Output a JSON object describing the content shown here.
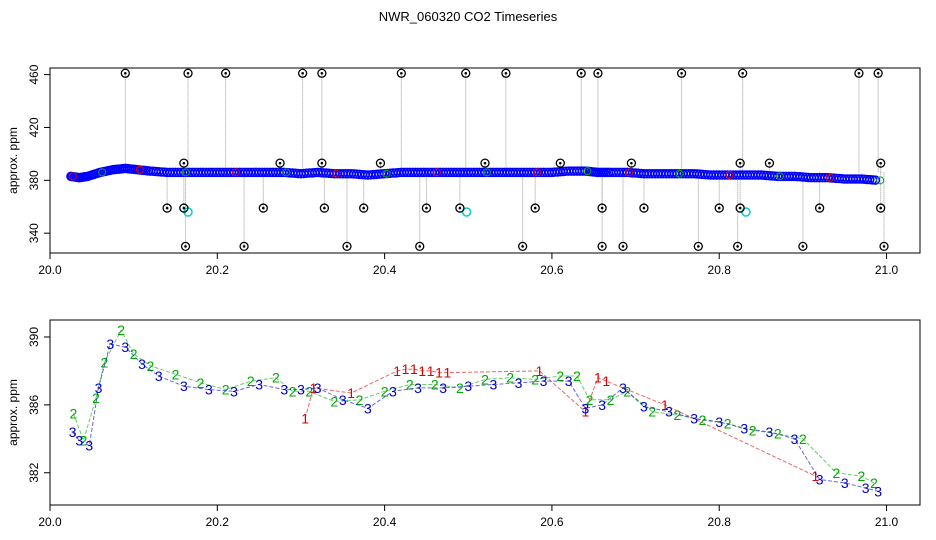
{
  "title": "NWR_060320  CO2 Timeseries",
  "chart_data": [
    {
      "type": "scatter",
      "ylabel": "approx. ppm",
      "xlim": [
        20.0,
        21.04
      ],
      "ylim": [
        325,
        465
      ],
      "xticks": [
        "20.0",
        "20.2",
        "20.4",
        "20.6",
        "20.8",
        "21.0"
      ],
      "yticks": [
        "340",
        "380",
        "420",
        "460"
      ],
      "series": [
        {
          "color": "#0000ff",
          "x": [
            20.025,
            20.035,
            20.045,
            20.06,
            20.075,
            20.09,
            20.105,
            20.12,
            20.14,
            20.16,
            20.18,
            20.2,
            20.22,
            20.24,
            20.26,
            20.28,
            20.3,
            20.32,
            20.34,
            20.36,
            20.38,
            20.4,
            20.42,
            20.44,
            20.46,
            20.48,
            20.5,
            20.52,
            20.54,
            20.56,
            20.58,
            20.6,
            20.62,
            20.64,
            20.655,
            20.67,
            20.69,
            20.71,
            20.73,
            20.75,
            20.77,
            20.79,
            20.81,
            20.83,
            20.85,
            20.87,
            20.89,
            20.91,
            20.93,
            20.95,
            20.97,
            20.99
          ],
          "y": [
            383,
            382,
            383,
            386,
            388,
            389,
            388,
            387,
            386,
            386,
            386,
            386,
            386,
            386,
            386,
            386,
            385,
            386,
            385,
            385,
            384,
            385,
            386,
            386,
            386,
            386,
            386,
            386,
            386,
            386,
            386,
            386,
            387,
            387,
            386,
            386,
            386,
            385,
            385,
            385,
            385,
            384,
            384,
            384,
            384,
            383,
            383,
            382,
            382,
            381,
            381,
            380
          ]
        },
        {
          "color": "#00cccc",
          "x": [
            20.165,
            20.498,
            20.832
          ],
          "y": [
            356,
            356,
            356
          ]
        },
        {
          "color": "#000000",
          "x": [
            20.09,
            20.165,
            20.21,
            20.302,
            20.325,
            20.42,
            20.497,
            20.545,
            20.635,
            20.655,
            20.755,
            20.828,
            20.967,
            20.99,
            20.16,
            20.275,
            20.325,
            20.395,
            20.52,
            20.61,
            20.695,
            20.825,
            20.86,
            20.993,
            20.14,
            20.16,
            20.255,
            20.328,
            20.375,
            20.45,
            20.49,
            20.58,
            20.66,
            20.71,
            20.8,
            20.825,
            20.92,
            20.993,
            20.162,
            20.232,
            20.355,
            20.442,
            20.565,
            20.66,
            20.685,
            20.775,
            20.822,
            20.9,
            20.997
          ],
          "y": [
            461,
            461,
            461,
            461,
            461,
            461,
            461,
            461,
            461,
            461,
            461,
            461,
            461,
            461,
            393,
            393,
            393,
            393,
            393,
            393,
            393,
            393,
            393,
            393,
            359,
            359,
            359,
            359,
            359,
            359,
            359,
            359,
            359,
            359,
            359,
            359,
            359,
            359,
            330,
            330,
            330,
            330,
            330,
            330,
            330,
            330,
            330,
            330,
            330
          ]
        }
      ]
    },
    {
      "type": "scatter",
      "ylabel": "approx. ppm",
      "xlim": [
        20.0,
        21.04
      ],
      "ylim": [
        380.1,
        391.0
      ],
      "xticks": [
        "20.0",
        "20.2",
        "20.4",
        "20.6",
        "20.8",
        "21.0"
      ],
      "yticks": [
        "382",
        "386",
        "390"
      ],
      "series": [
        {
          "name": "1",
          "color": "#dd0000",
          "x": [
            20.305,
            20.315,
            20.36,
            20.415,
            20.425,
            20.435,
            20.445,
            20.455,
            20.465,
            20.475,
            20.585,
            20.64,
            20.655,
            20.665,
            20.735,
            20.915
          ],
          "y": [
            385.2,
            387.0,
            386.7,
            388.0,
            388.1,
            388.1,
            388.0,
            388.0,
            387.9,
            387.9,
            388.0,
            385.6,
            387.6,
            387.4,
            386.0,
            381.8
          ]
        },
        {
          "name": "2",
          "color": "#00aa00",
          "x": [
            20.028,
            20.04,
            20.055,
            20.065,
            20.085,
            20.1,
            20.12,
            20.15,
            20.18,
            20.21,
            20.24,
            20.27,
            20.29,
            20.31,
            20.34,
            20.37,
            20.4,
            20.43,
            20.46,
            20.49,
            20.52,
            20.55,
            20.58,
            20.61,
            20.63,
            20.645,
            20.67,
            20.69,
            20.72,
            20.75,
            20.78,
            20.81,
            20.84,
            20.87,
            20.9,
            20.94,
            20.97,
            20.985
          ],
          "y": [
            385.5,
            383.9,
            386.4,
            388.5,
            390.4,
            389.0,
            388.3,
            387.8,
            387.3,
            386.9,
            387.4,
            387.6,
            386.8,
            386.8,
            386.2,
            386.3,
            386.8,
            387.2,
            387.2,
            387.0,
            387.5,
            387.6,
            387.5,
            387.7,
            387.7,
            386.3,
            386.3,
            386.8,
            385.6,
            385.4,
            385.1,
            384.9,
            384.5,
            384.3,
            384.0,
            382.0,
            381.8,
            381.4
          ]
        },
        {
          "name": "3",
          "color": "#0000cc",
          "x": [
            20.027,
            20.035,
            20.047,
            20.058,
            20.072,
            20.09,
            20.11,
            20.13,
            20.16,
            20.19,
            20.22,
            20.25,
            20.28,
            20.3,
            20.32,
            20.35,
            20.38,
            20.41,
            20.44,
            20.47,
            20.5,
            20.53,
            20.56,
            20.59,
            20.62,
            20.64,
            20.66,
            20.685,
            20.71,
            20.74,
            20.77,
            20.8,
            20.83,
            20.86,
            20.89,
            20.92,
            20.95,
            20.975,
            20.99
          ],
          "y": [
            384.4,
            383.9,
            383.6,
            387.0,
            389.6,
            389.4,
            388.4,
            387.7,
            387.1,
            386.9,
            386.8,
            387.2,
            386.9,
            386.9,
            387.0,
            386.3,
            385.8,
            386.8,
            387.0,
            387.0,
            387.1,
            387.2,
            387.3,
            387.4,
            387.4,
            385.8,
            386.0,
            387.0,
            385.9,
            385.6,
            385.2,
            385.0,
            384.6,
            384.4,
            384.0,
            381.6,
            381.4,
            381.1,
            380.9
          ]
        }
      ]
    }
  ]
}
